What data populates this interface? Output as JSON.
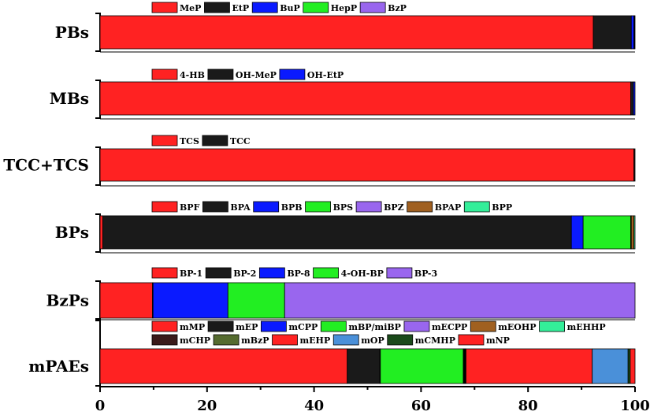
{
  "chart_data": {
    "type": "bar",
    "orientation": "horizontal",
    "stacked": true,
    "xlim": [
      0,
      100
    ],
    "x_ticks": [
      "0",
      "20",
      "40",
      "60",
      "80",
      "100"
    ],
    "grid": false,
    "legend_placement": "above each bar",
    "groups": [
      {
        "name": "PBs",
        "segments": [
          {
            "label": "MeP",
            "value": 92.2,
            "color": "#ff2222"
          },
          {
            "label": "EtP",
            "value": 7.1,
            "color": "#1a1a1a"
          },
          {
            "label": "BuP",
            "value": 0.5,
            "color": "#0a1aff"
          },
          {
            "label": "HepP",
            "value": 0.1,
            "color": "#22ee22"
          },
          {
            "label": "BzP",
            "value": 0.1,
            "color": "#9966ee"
          }
        ]
      },
      {
        "name": "MBs",
        "segments": [
          {
            "label": "4-HB",
            "value": 99.2,
            "color": "#ff2222"
          },
          {
            "label": "OH-MeP",
            "value": 0.5,
            "color": "#1a1a1a"
          },
          {
            "label": "OH-EtP",
            "value": 0.3,
            "color": "#0a1aff"
          }
        ]
      },
      {
        "name": "TCC+TCS",
        "segments": [
          {
            "label": "TCS",
            "value": 99.8,
            "color": "#ff2222"
          },
          {
            "label": "TCC",
            "value": 0.2,
            "color": "#1a1a1a"
          }
        ]
      },
      {
        "name": "BPs",
        "segments": [
          {
            "label": "BPF",
            "value": 0.5,
            "color": "#ff2222"
          },
          {
            "label": "BPA",
            "value": 87.6,
            "color": "#1a1a1a"
          },
          {
            "label": "BPB",
            "value": 2.2,
            "color": "#0a1aff"
          },
          {
            "label": "BPS",
            "value": 8.9,
            "color": "#22ee22"
          },
          {
            "label": "BPZ",
            "value": 0.1,
            "color": "#9966ee"
          },
          {
            "label": "BPAP",
            "value": 0.5,
            "color": "#a06020"
          },
          {
            "label": "BPP",
            "value": 0.2,
            "color": "#33ee99"
          }
        ]
      },
      {
        "name": "BzPs",
        "segments": [
          {
            "label": "BP-1",
            "value": 9.8,
            "color": "#ff2222"
          },
          {
            "label": "BP-2",
            "value": 0.1,
            "color": "#1a1a1a"
          },
          {
            "label": "BP-8",
            "value": 14.0,
            "color": "#0a1aff"
          },
          {
            "label": "4-OH-BP",
            "value": 10.6,
            "color": "#22ee22"
          },
          {
            "label": "BP-3",
            "value": 65.5,
            "color": "#9966ee"
          }
        ]
      },
      {
        "name": "mPAEs",
        "segments": [
          {
            "label": "mMP",
            "value": 46.2,
            "color": "#ff2222"
          },
          {
            "label": "mEP",
            "value": 6.1,
            "color": "#1a1a1a"
          },
          {
            "label": "mCPP",
            "value": 0.1,
            "color": "#0a1aff"
          },
          {
            "label": "mBP/miBP",
            "value": 15.5,
            "color": "#22ee22"
          },
          {
            "label": "mECPP",
            "value": 0.1,
            "color": "#9966ee"
          },
          {
            "label": "mEOHP",
            "value": 0.1,
            "color": "#a06020"
          },
          {
            "label": "mEHHP",
            "value": 0.1,
            "color": "#33ee99"
          },
          {
            "label": "mCHP",
            "value": 0.1,
            "color": "#3a1a1a"
          },
          {
            "label": "mBzP",
            "value": 0.1,
            "color": "#556b2f"
          },
          {
            "label": "mEHP",
            "value": 23.6,
            "color": "#ff2222"
          },
          {
            "label": "mOP",
            "value": 6.7,
            "color": "#4a90d9"
          },
          {
            "label": "mCMHP",
            "value": 0.4,
            "color": "#1a4a1a"
          },
          {
            "label": "mNP",
            "value": 0.9,
            "color": "#ff2222"
          }
        ]
      }
    ]
  }
}
